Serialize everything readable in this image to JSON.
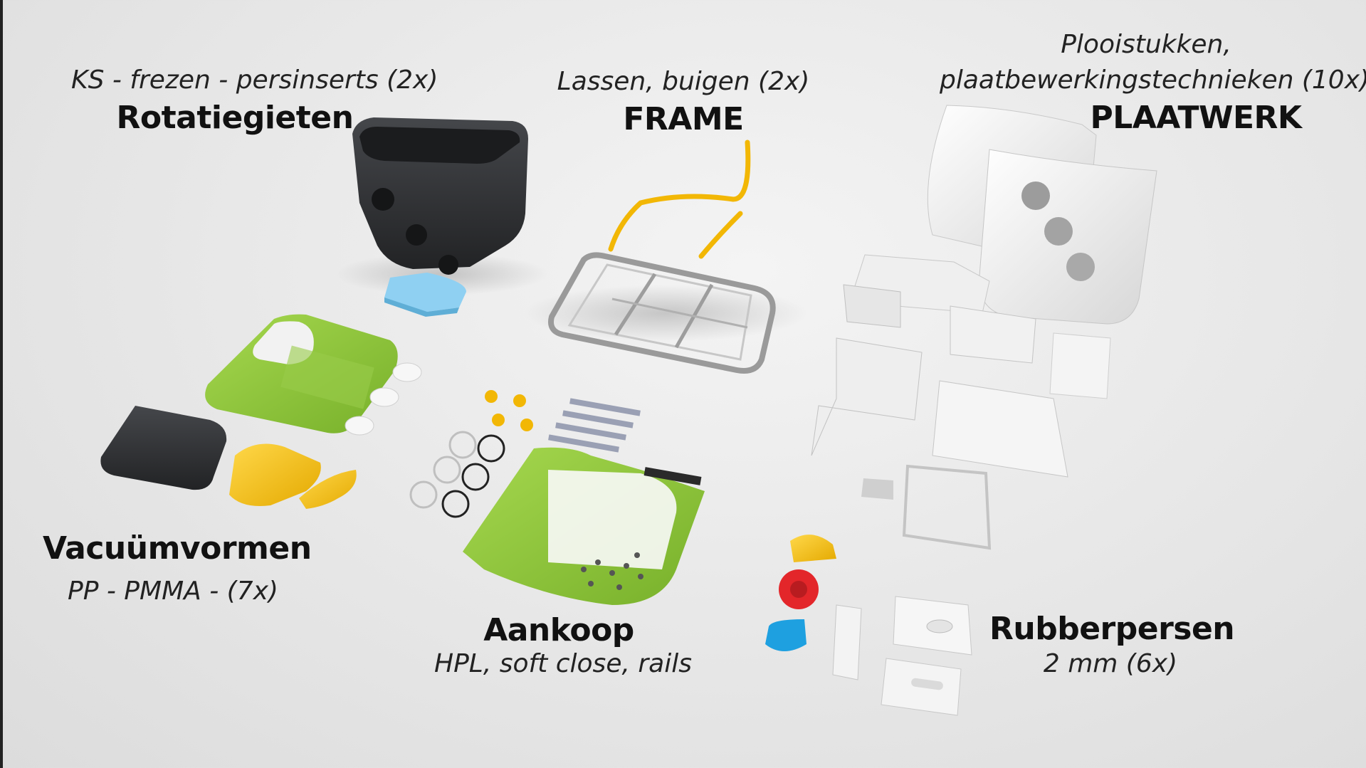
{
  "groups": {
    "rotatiegieten": {
      "title": "Rotatiegieten",
      "subtitle": "KS - frezen - persinserts (2x)"
    },
    "frame": {
      "title": "FRAME",
      "subtitle": "Lassen, buigen (2x)"
    },
    "plaatwerk": {
      "title": "PLAATWERK",
      "subtitle_line1": "Plooistukken,",
      "subtitle_line2": "plaatbewerkingstechnieken (10x)"
    },
    "vacuumvormen": {
      "title": "Vacuümvormen",
      "subtitle": "PP - PMMA - (7x)"
    },
    "aankoop": {
      "title": "Aankoop",
      "subtitle": "HPL, soft close, rails"
    },
    "rubberpersen": {
      "title": "Rubberpersen",
      "subtitle": "2 mm (6x)"
    }
  },
  "colors": {
    "lime_green": "#8cc63f",
    "yellow": "#f5c518",
    "dark_plastic": "#2f3033",
    "light_blue": "#8fd0f2",
    "red": "#e3262a",
    "cyan_blue": "#1ea0e0",
    "white_sheet": "#f6f6f6",
    "steel": "#b8b8b8"
  }
}
